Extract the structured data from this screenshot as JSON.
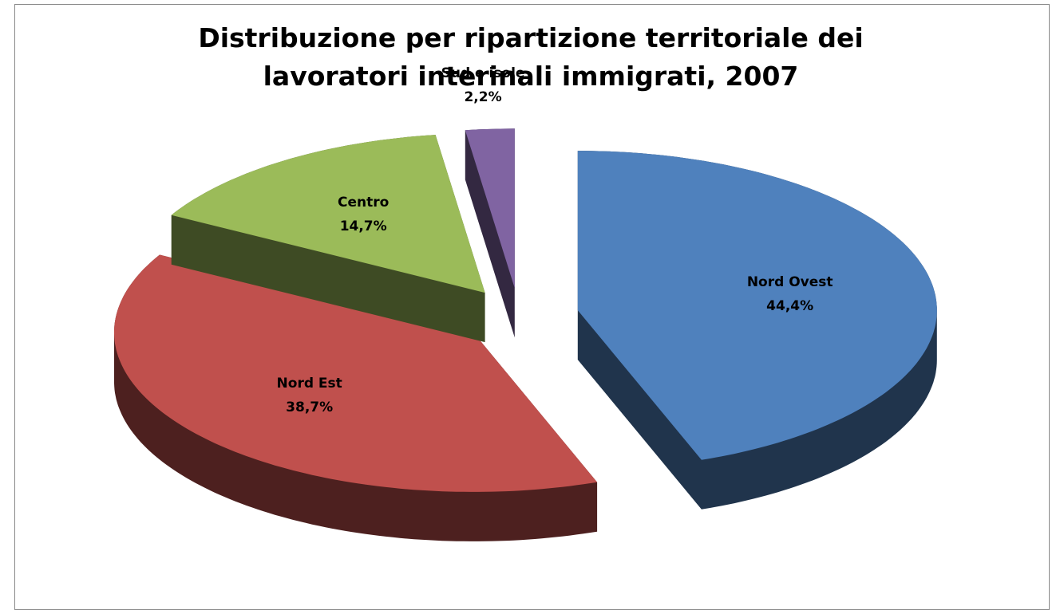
{
  "chart_data": {
    "type": "pie",
    "title": "Distribuzione per ripartizione territoriale dei lavoratori interinali immigrati, 2007",
    "categories": [
      "Nord Ovest",
      "Nord Est",
      "Centro",
      "Sud e isole"
    ],
    "values": [
      44.4,
      38.7,
      14.7,
      2.2
    ],
    "value_labels": [
      "44,4%",
      "38,7%",
      "14,7%",
      "2,2%"
    ],
    "colors": [
      "#4f81bd",
      "#c0504d",
      "#9bbb59",
      "#8064a2"
    ]
  }
}
